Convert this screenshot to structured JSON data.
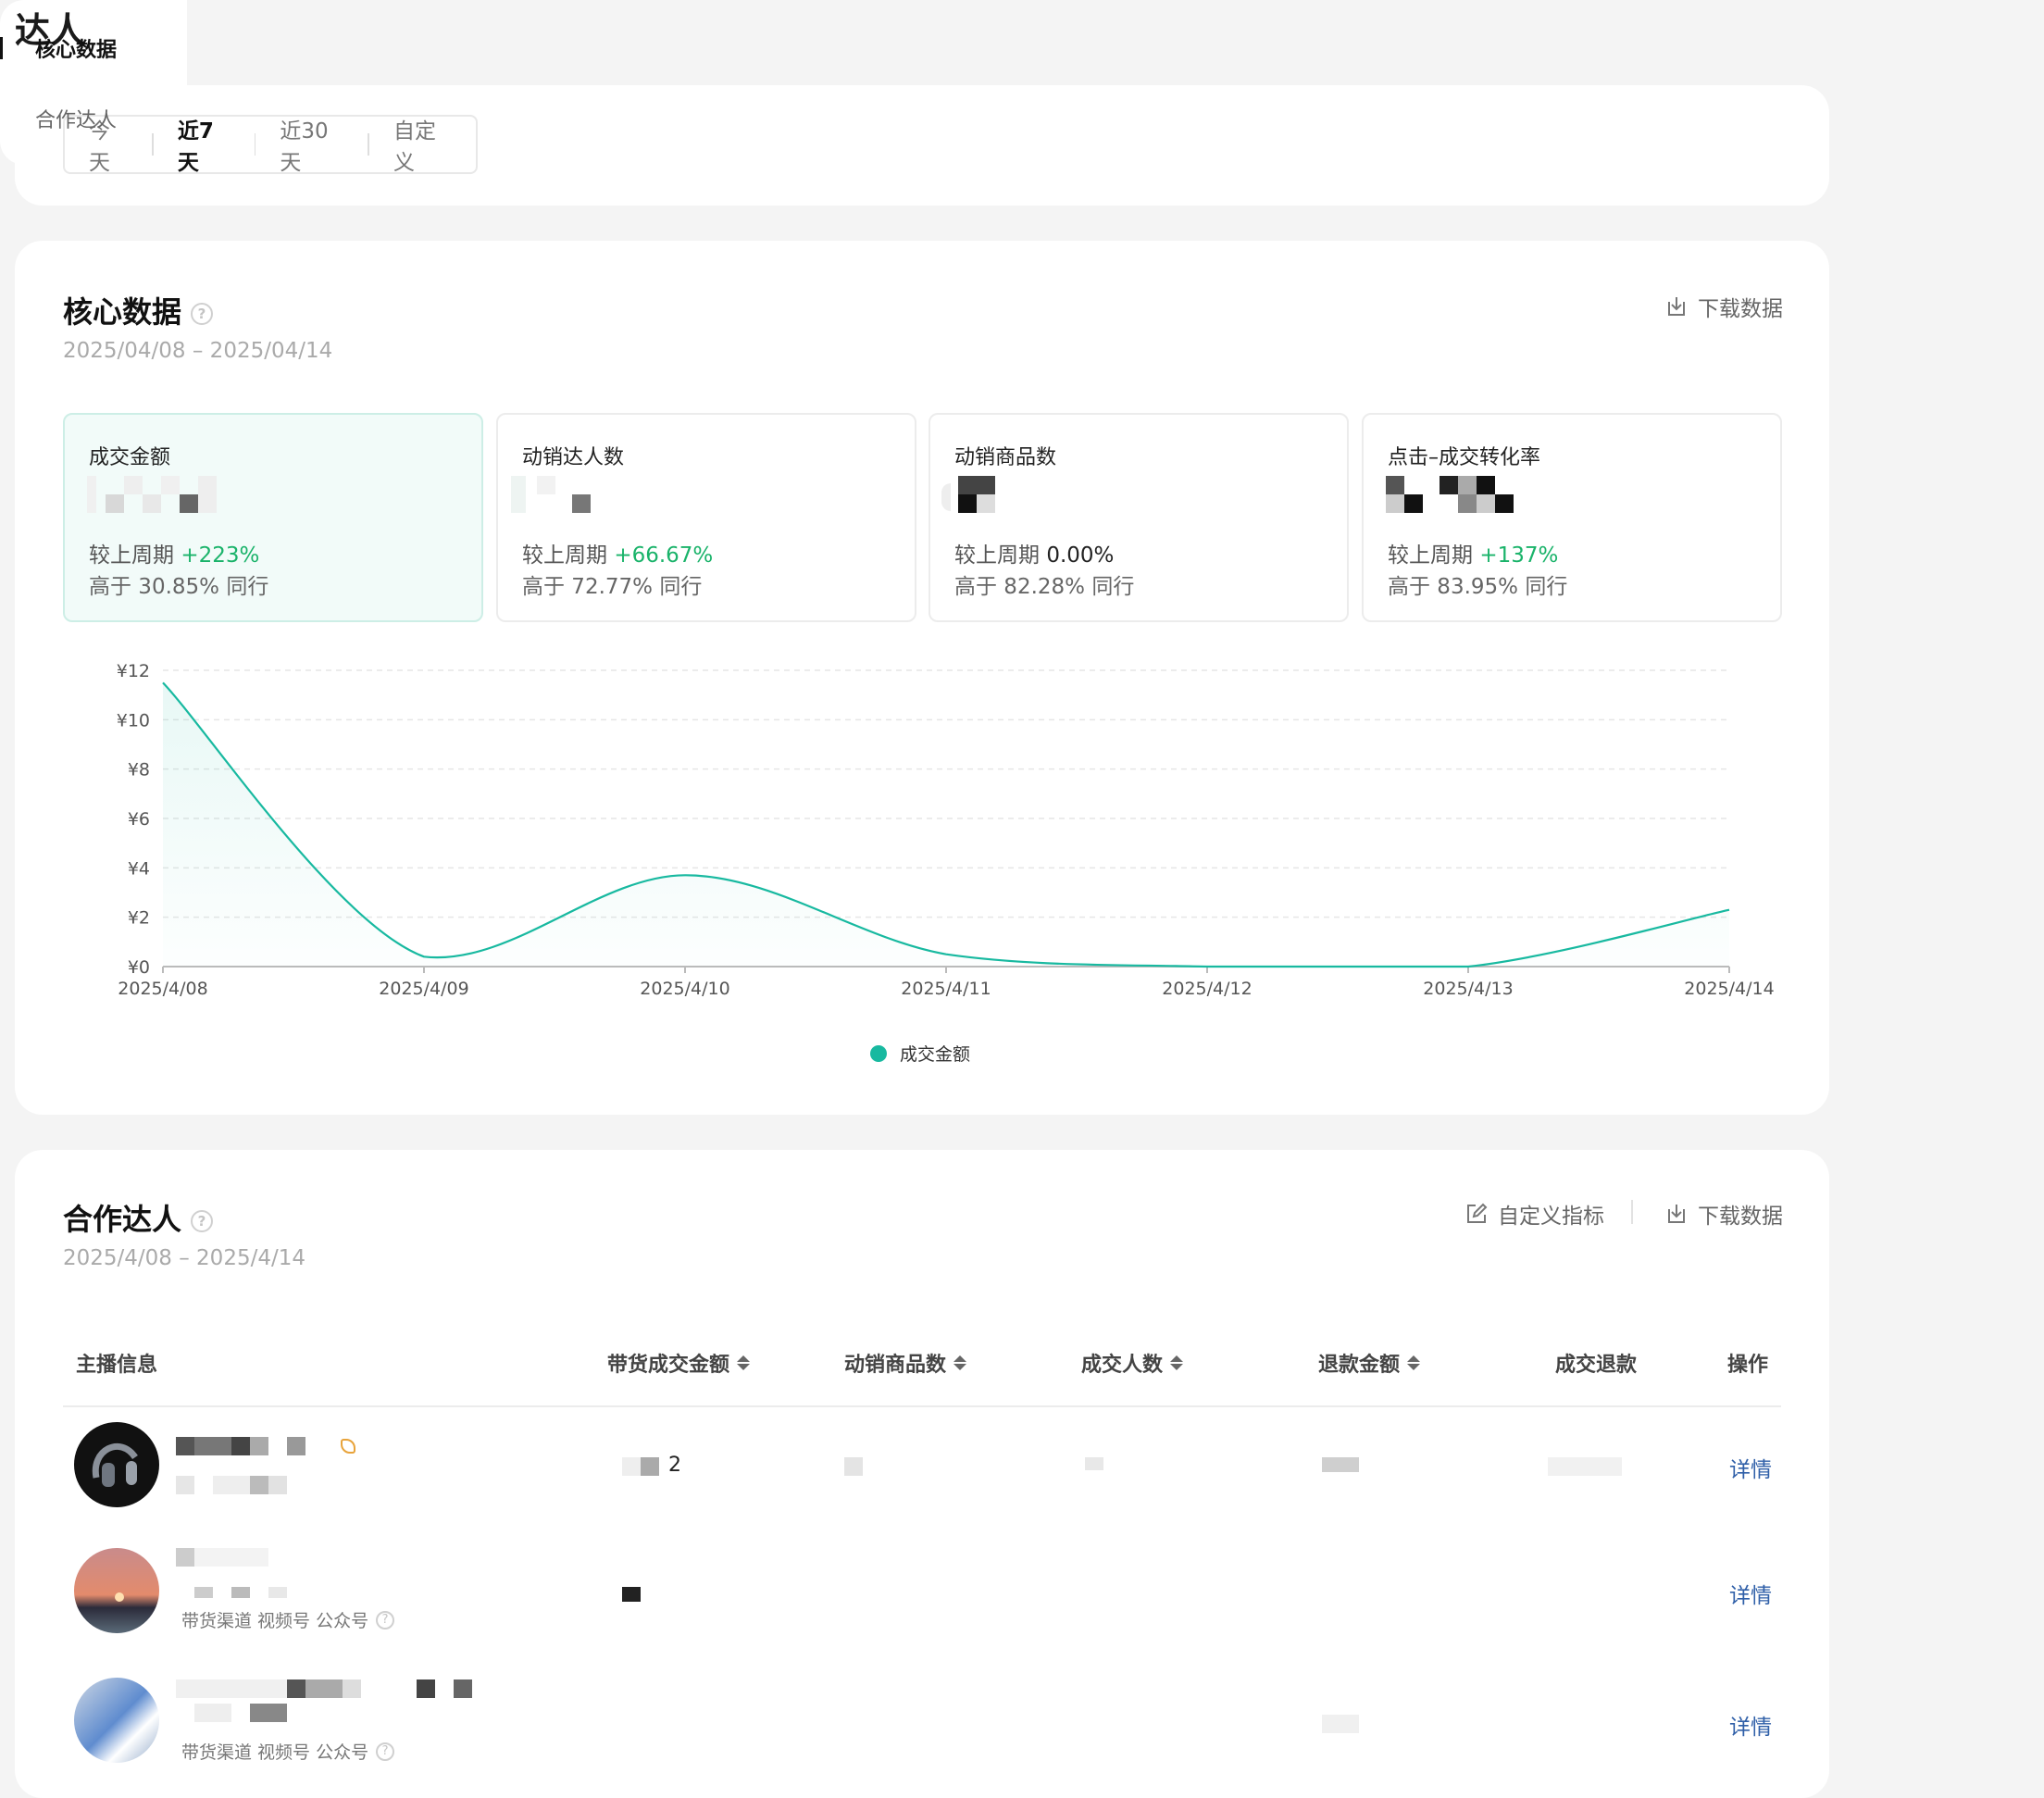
{
  "page": {
    "title": "达人"
  },
  "range_tabs": [
    {
      "label": "今天",
      "active": false
    },
    {
      "label": "近7天",
      "active": true
    },
    {
      "label": "近30天",
      "active": false
    },
    {
      "label": "自定义",
      "active": false
    }
  ],
  "core": {
    "title": "核心数据",
    "date_range": "2025/04/08 – 2025/04/14",
    "download_label": "下载数据",
    "metrics": [
      {
        "label": "成交金额",
        "compare_prefix": "较上周期",
        "compare_value": "+223%",
        "compare_color": "#1ab36a",
        "peer_text": "高于 30.85% 同行",
        "active": true
      },
      {
        "label": "动销达人数",
        "compare_prefix": "较上周期",
        "compare_value": "+66.67%",
        "compare_color": "#1ab36a",
        "peer_text": "高于 72.77% 同行",
        "active": false
      },
      {
        "label": "动销商品数",
        "compare_prefix": "较上周期",
        "compare_value": "0.00%",
        "compare_color": "#222222",
        "peer_text": "高于 82.28% 同行",
        "active": false
      },
      {
        "label": "点击–成交转化率",
        "compare_prefix": "较上周期",
        "compare_value": "+137%",
        "compare_color": "#1ab36a",
        "peer_text": "高于 83.95% 同行",
        "active": false
      }
    ]
  },
  "chart_data": {
    "type": "area",
    "x": [
      "2025/4/08",
      "2025/4/09",
      "2025/4/10",
      "2025/4/11",
      "2025/4/12",
      "2025/4/13",
      "2025/4/14"
    ],
    "series": [
      {
        "name": "成交金额",
        "values": [
          11.5,
          0.4,
          3.7,
          0.5,
          0,
          0,
          2.3
        ],
        "color": "#18b9a0"
      }
    ],
    "y_ticks": [
      "¥12",
      "¥10",
      "¥8",
      "¥6",
      "¥4",
      "¥2",
      "¥0"
    ],
    "ylim": [
      0,
      12
    ],
    "grid": true,
    "legend": "bottom-center"
  },
  "partners": {
    "title": "合作达人",
    "date_range": "2025/4/08 – 2025/4/14",
    "customize_label": "自定义指标",
    "download_label": "下载数据",
    "columns": [
      "主播信息",
      "带货成交金额",
      "动销商品数",
      "成交人数",
      "退款金额",
      "成交退款",
      "操作"
    ],
    "rows": [
      {
        "amount": "2",
        "channel": "",
        "action": "详情"
      },
      {
        "amount": "",
        "channel": "带货渠道 视频号 公众号",
        "action": "详情"
      },
      {
        "amount": "",
        "channel": "带货渠道 视频号 公众号",
        "action": "详情"
      }
    ]
  },
  "side_nav": [
    {
      "label": "核心数据",
      "active": true
    },
    {
      "label": "合作达人",
      "active": false
    }
  ]
}
